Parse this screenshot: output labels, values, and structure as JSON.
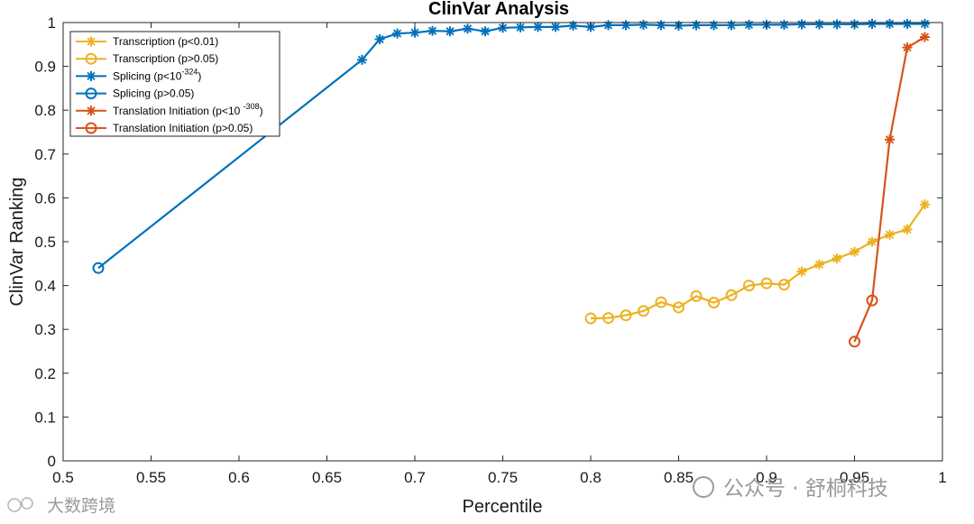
{
  "chart_data": {
    "type": "line",
    "title": "ClinVar Analysis",
    "xlabel": "Percentile",
    "ylabel": "ClinVar Ranking",
    "xlim": [
      0.5,
      1.0
    ],
    "ylim": [
      0,
      1.0
    ],
    "x_ticks": [
      0.5,
      0.55,
      0.6,
      0.65,
      0.7,
      0.75,
      0.8,
      0.85,
      0.9,
      0.95,
      1
    ],
    "x_tick_labels": [
      "0.5",
      "0.55",
      "0.6",
      "0.65",
      "0.7",
      "0.75",
      "0.8",
      "0.85",
      "0.9",
      "0.95",
      "1"
    ],
    "y_ticks": [
      0,
      0.1,
      0.2,
      0.3,
      0.4,
      0.5,
      0.6,
      0.7,
      0.8,
      0.9,
      1
    ],
    "y_tick_labels": [
      "0",
      "0.1",
      "0.2",
      "0.3",
      "0.4",
      "0.5",
      "0.6",
      "0.7",
      "0.8",
      "0.9",
      "1"
    ],
    "grid": false,
    "legend_position": "top-left",
    "series": [
      {
        "group": "transcription",
        "color": "#EDB120",
        "x": [
          0.8,
          0.81,
          0.82,
          0.83,
          0.84,
          0.85,
          0.86,
          0.87,
          0.88,
          0.89,
          0.9,
          0.91,
          0.92,
          0.93,
          0.94,
          0.95,
          0.96,
          0.97,
          0.98,
          0.99
        ],
        "y": [
          0.325,
          0.326,
          0.332,
          0.342,
          0.362,
          0.35,
          0.376,
          0.361,
          0.378,
          0.4,
          0.405,
          0.402,
          0.432,
          0.448,
          0.462,
          0.477,
          0.5,
          0.516,
          0.528,
          0.585
        ],
        "markers": [
          "o",
          "o",
          "o",
          "o",
          "o",
          "o",
          "o",
          "o",
          "o",
          "o",
          "o",
          "o",
          "*",
          "*",
          "*",
          "*",
          "*",
          "*",
          "*",
          "*"
        ]
      },
      {
        "group": "splicing",
        "color": "#0072BD",
        "x": [
          0.52,
          0.67,
          0.68,
          0.69,
          0.7,
          0.71,
          0.72,
          0.73,
          0.74,
          0.75,
          0.76,
          0.77,
          0.78,
          0.79,
          0.8,
          0.81,
          0.82,
          0.83,
          0.84,
          0.85,
          0.86,
          0.87,
          0.88,
          0.89,
          0.9,
          0.91,
          0.92,
          0.93,
          0.94,
          0.95,
          0.96,
          0.97,
          0.98,
          0.99
        ],
        "y": [
          0.44,
          0.915,
          0.962,
          0.975,
          0.977,
          0.981,
          0.98,
          0.986,
          0.98,
          0.988,
          0.989,
          0.99,
          0.99,
          0.993,
          0.99,
          0.994,
          0.994,
          0.995,
          0.994,
          0.993,
          0.994,
          0.994,
          0.994,
          0.995,
          0.995,
          0.995,
          0.996,
          0.996,
          0.996,
          0.996,
          0.997,
          0.997,
          0.997,
          0.997
        ],
        "markers": [
          "o",
          "*",
          "*",
          "*",
          "*",
          "*",
          "*",
          "*",
          "*",
          "*",
          "*",
          "*",
          "*",
          "*",
          "*",
          "*",
          "*",
          "*",
          "*",
          "*",
          "*",
          "*",
          "*",
          "*",
          "*",
          "*",
          "*",
          "*",
          "*",
          "*",
          "*",
          "*",
          "*",
          "*"
        ]
      },
      {
        "group": "translation",
        "color": "#D95319",
        "x": [
          0.95,
          0.96,
          0.97,
          0.98,
          0.99
        ],
        "y": [
          0.272,
          0.366,
          0.733,
          0.943,
          0.967
        ],
        "markers": [
          "o",
          "o",
          "*",
          "*",
          "*"
        ]
      }
    ],
    "legend": [
      {
        "color": "#EDB120",
        "marker": "*",
        "label": "Transcription (p<0.01)",
        "label_sup": "",
        "label_suffix": ""
      },
      {
        "color": "#EDB120",
        "marker": "o",
        "label": "Transcription (p>0.05)",
        "label_sup": "",
        "label_suffix": ""
      },
      {
        "color": "#0072BD",
        "marker": "*",
        "label": "Splicing (p<10",
        "label_sup": "-324",
        "label_suffix": ")"
      },
      {
        "color": "#0072BD",
        "marker": "o",
        "label": "Splicing (p>0.05)",
        "label_sup": "",
        "label_suffix": ""
      },
      {
        "color": "#D95319",
        "marker": "*",
        "label": "Translation Initiation (p<10 ",
        "label_sup": "-308",
        "label_suffix": ")"
      },
      {
        "color": "#D95319",
        "marker": "o",
        "label": "Translation Initiation (p>0.05)",
        "label_sup": "",
        "label_suffix": ""
      }
    ]
  },
  "watermarks": {
    "left": "大数跨境",
    "right": "公众号 · 舒桐科技"
  }
}
